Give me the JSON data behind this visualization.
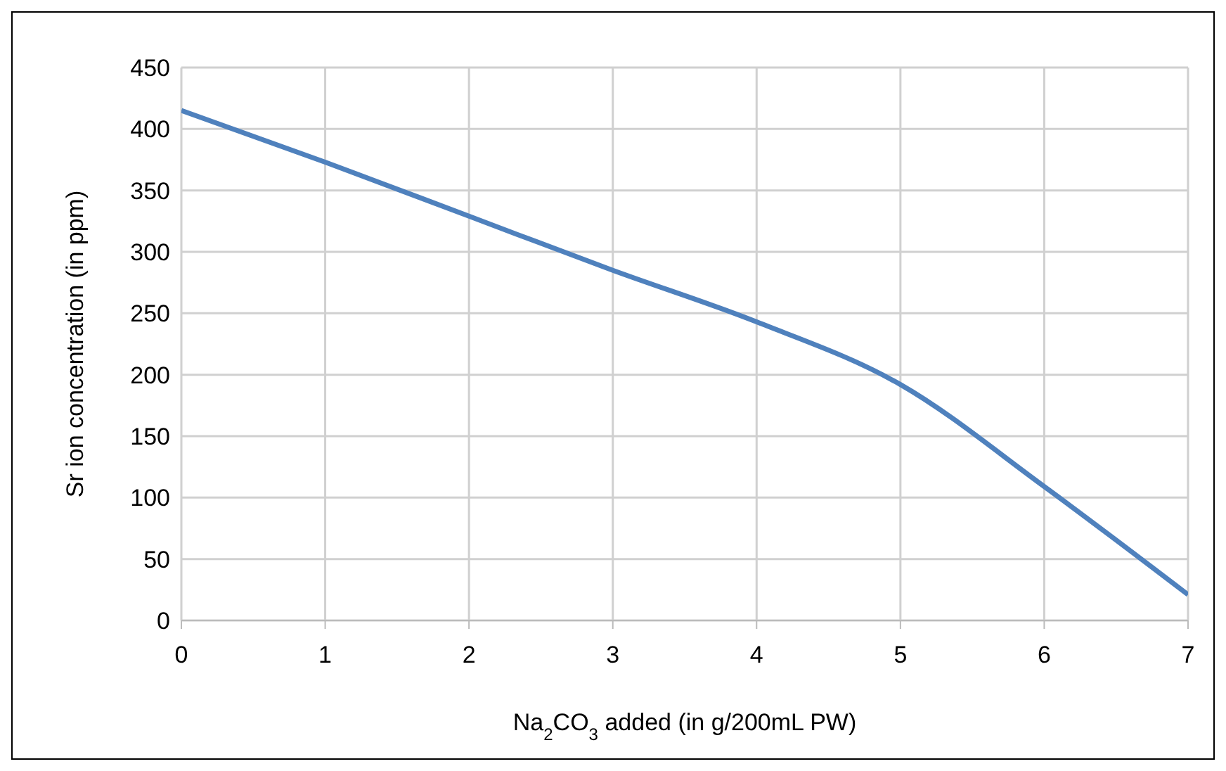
{
  "chart_data": {
    "type": "line",
    "xlabel": "Na$_{2}$CO$_{3}$ added (in g/200mL PW)",
    "ylabel": "Sr ion concentration (in ppm)",
    "x": [
      0,
      1,
      2,
      3,
      4,
      5,
      6,
      7
    ],
    "series": [
      {
        "color": "#4f81bd",
        "values": [
          415,
          373,
          329,
          285,
          243,
          192,
          109,
          21
        ]
      }
    ],
    "xlim": [
      0,
      7
    ],
    "xticks": [
      0,
      1,
      2,
      3,
      4,
      5,
      6,
      7
    ],
    "ylim": [
      0,
      450
    ],
    "yticks": [
      0,
      50,
      100,
      150,
      200,
      250,
      300,
      350,
      400,
      450
    ],
    "grid": true,
    "marker": "none",
    "line_style": "solid",
    "legend": false
  }
}
